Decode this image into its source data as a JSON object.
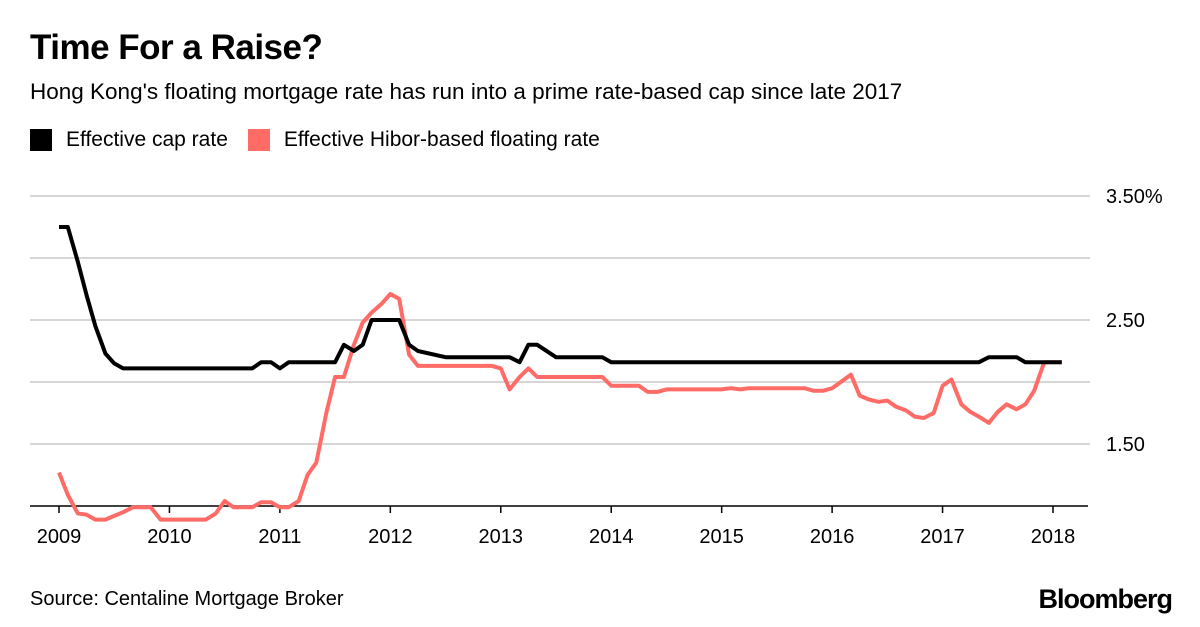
{
  "header": {
    "title": "Time For a Raise?",
    "subtitle": "Hong Kong's floating mortgage rate has run into a prime rate-based cap since late 2017"
  },
  "legend": [
    {
      "label": "Effective cap rate",
      "color": "#000000"
    },
    {
      "label": "Effective Hibor-based floating rate",
      "color": "#ff6b66"
    }
  ],
  "footer": {
    "source": "Source: Centaline Mortgage Broker",
    "brand": "Bloomberg"
  },
  "chart_data": {
    "type": "line",
    "title": "Time For a Raise?",
    "xlabel": "",
    "ylabel": "",
    "xlim": [
      2009,
      2018.3
    ],
    "ylim": [
      1.0,
      3.5
    ],
    "x_ticks": [
      2009,
      2010,
      2011,
      2012,
      2013,
      2014,
      2015,
      2016,
      2017,
      2018
    ],
    "x_tick_labels": [
      "2009",
      "2010",
      "2011",
      "2012",
      "2013",
      "2014",
      "2015",
      "2016",
      "2017",
      "2018"
    ],
    "y_gridlines": [
      1.0,
      1.5,
      2.0,
      2.5,
      3.0,
      3.5
    ],
    "y_tick_labels": [
      {
        "value": 3.5,
        "label": "3.50%"
      },
      {
        "value": 2.5,
        "label": "2.50"
      },
      {
        "value": 1.5,
        "label": "1.50"
      }
    ],
    "grid": true,
    "legend_position": "top-left",
    "series": [
      {
        "name": "Effective cap rate",
        "color": "#000000",
        "x": [
          2009.0,
          2009.08,
          2009.17,
          2009.25,
          2009.33,
          2009.42,
          2009.5,
          2009.58,
          2009.67,
          2009.75,
          2010.0,
          2010.5,
          2010.75,
          2010.83,
          2010.92,
          2011.0,
          2011.08,
          2011.17,
          2011.25,
          2011.33,
          2011.42,
          2011.5,
          2011.58,
          2011.67,
          2011.75,
          2011.83,
          2011.92,
          2012.0,
          2012.08,
          2012.17,
          2012.25,
          2012.5,
          2012.75,
          2013.0,
          2013.08,
          2013.17,
          2013.25,
          2013.33,
          2013.5,
          2013.75,
          2013.92,
          2014.0,
          2014.5,
          2015.0,
          2015.5,
          2016.0,
          2016.5,
          2017.0,
          2017.33,
          2017.42,
          2017.5,
          2017.58,
          2017.67,
          2017.75,
          2017.83,
          2018.0,
          2018.08
        ],
        "y": [
          3.25,
          3.25,
          2.97,
          2.7,
          2.45,
          2.23,
          2.15,
          2.11,
          2.11,
          2.11,
          2.11,
          2.11,
          2.11,
          2.16,
          2.16,
          2.11,
          2.16,
          2.16,
          2.16,
          2.16,
          2.16,
          2.16,
          2.3,
          2.25,
          2.3,
          2.5,
          2.5,
          2.5,
          2.5,
          2.3,
          2.25,
          2.2,
          2.2,
          2.2,
          2.2,
          2.16,
          2.3,
          2.3,
          2.2,
          2.2,
          2.2,
          2.16,
          2.16,
          2.16,
          2.16,
          2.16,
          2.16,
          2.16,
          2.16,
          2.2,
          2.2,
          2.2,
          2.2,
          2.16,
          2.16,
          2.16,
          2.16
        ]
      },
      {
        "name": "Effective Hibor-based floating rate",
        "color": "#ff6b66",
        "x": [
          2009.0,
          2009.08,
          2009.17,
          2009.25,
          2009.33,
          2009.42,
          2009.5,
          2009.58,
          2009.67,
          2009.75,
          2009.83,
          2009.92,
          2010.0,
          2010.17,
          2010.33,
          2010.42,
          2010.5,
          2010.58,
          2010.67,
          2010.75,
          2010.83,
          2010.92,
          2011.0,
          2011.08,
          2011.17,
          2011.25,
          2011.33,
          2011.42,
          2011.5,
          2011.58,
          2011.67,
          2011.75,
          2011.83,
          2011.92,
          2012.0,
          2012.08,
          2012.17,
          2012.25,
          2012.5,
          2012.75,
          2012.92,
          2013.0,
          2013.08,
          2013.17,
          2013.25,
          2013.33,
          2013.5,
          2013.75,
          2013.92,
          2014.0,
          2014.25,
          2014.33,
          2014.42,
          2014.5,
          2014.75,
          2015.0,
          2015.08,
          2015.17,
          2015.25,
          2015.5,
          2015.75,
          2015.83,
          2015.92,
          2016.0,
          2016.08,
          2016.17,
          2016.25,
          2016.33,
          2016.42,
          2016.5,
          2016.58,
          2016.67,
          2016.75,
          2016.83,
          2016.92,
          2017.0,
          2017.08,
          2017.17,
          2017.25,
          2017.33,
          2017.42,
          2017.5,
          2017.58,
          2017.67,
          2017.75,
          2017.83,
          2017.92,
          2018.0,
          2018.08
        ],
        "y": [
          1.27,
          1.09,
          0.94,
          0.93,
          0.89,
          0.89,
          0.92,
          0.95,
          0.99,
          0.99,
          0.99,
          0.89,
          0.89,
          0.89,
          0.89,
          0.94,
          1.04,
          0.99,
          0.99,
          0.99,
          1.03,
          1.03,
          0.99,
          0.99,
          1.04,
          1.25,
          1.35,
          1.75,
          2.04,
          2.04,
          2.3,
          2.48,
          2.56,
          2.63,
          2.71,
          2.67,
          2.22,
          2.13,
          2.13,
          2.13,
          2.13,
          2.11,
          1.94,
          2.04,
          2.11,
          2.04,
          2.04,
          2.04,
          2.04,
          1.97,
          1.97,
          1.92,
          1.92,
          1.94,
          1.94,
          1.94,
          1.95,
          1.94,
          1.95,
          1.95,
          1.95,
          1.93,
          1.93,
          1.95,
          2.0,
          2.06,
          1.89,
          1.86,
          1.84,
          1.85,
          1.8,
          1.77,
          1.72,
          1.71,
          1.75,
          1.97,
          2.02,
          1.82,
          1.76,
          1.72,
          1.67,
          1.76,
          1.82,
          1.78,
          1.82,
          1.93,
          2.16,
          2.16,
          2.16
        ]
      }
    ]
  }
}
